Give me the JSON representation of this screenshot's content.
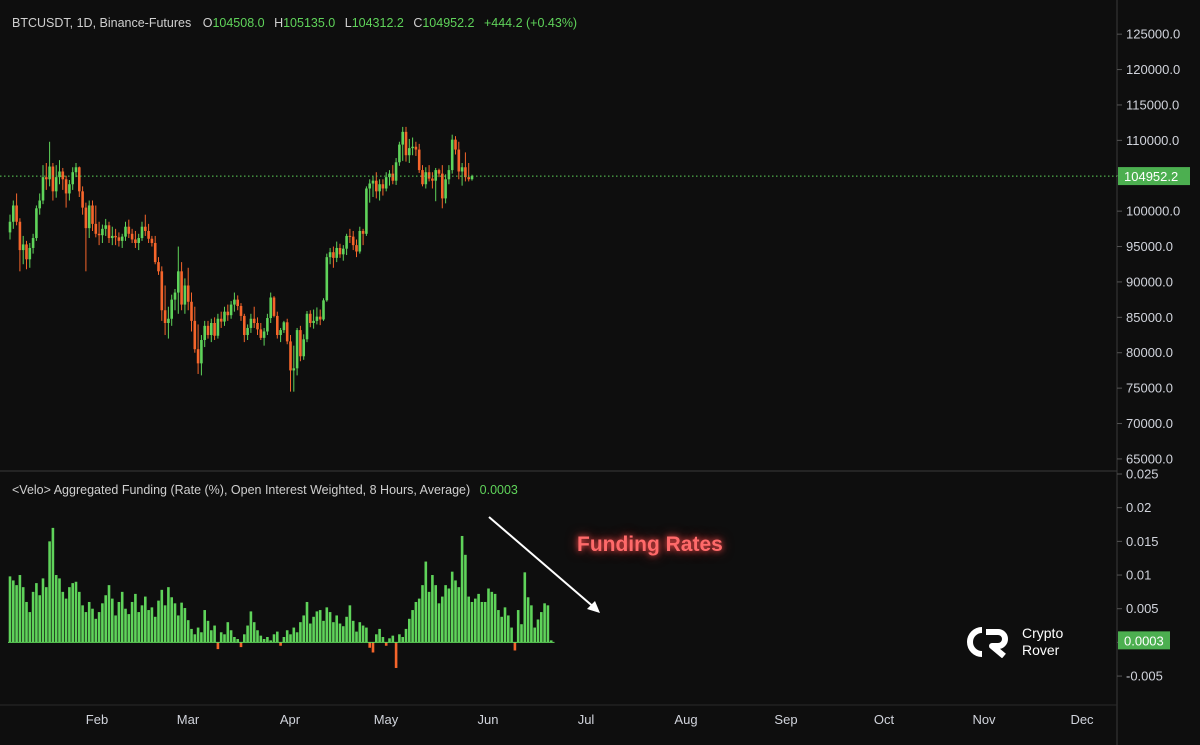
{
  "header": {
    "symbol": "BTCUSDT, 1D, Binance-Futures",
    "open_label": "O",
    "open": "104508.0",
    "high_label": "H",
    "high": "105135.0",
    "low_label": "L",
    "low": "104312.2",
    "close_label": "C",
    "close": "104952.2",
    "change": "+444.2 (+0.43%)"
  },
  "indicator": {
    "label": "<Velo> Aggregated Funding (Rate (%), Open Interest Weighted, 8 Hours, Average)",
    "value": "0.0003"
  },
  "annotation": "Funding Rates",
  "logo": {
    "line1": "Crypto",
    "line2": "Rover"
  },
  "colors": {
    "up": "#5fd35a",
    "down": "#f5652b",
    "background": "#0e0e0e",
    "last_price_tag": "#4caf50"
  },
  "chart_data": [
    {
      "type": "candlestick",
      "title": "BTCUSDT, 1D, Binance-Futures",
      "yaxis_ticks": [
        "125000.0",
        "120000.0",
        "115000.0",
        "110000.0",
        "105000.0",
        "100000.0",
        "95000.0",
        "90000.0",
        "85000.0",
        "80000.0",
        "75000.0",
        "70000.0",
        "65000.0"
      ],
      "ylim": [
        64000,
        127000
      ],
      "xaxis_ticks": [
        "Feb",
        "Mar",
        "Apr",
        "May",
        "Jun",
        "Jul",
        "Aug",
        "Sep",
        "Oct",
        "Nov",
        "Dec"
      ],
      "x_start": "2025-01-01",
      "last_price": 104952.2,
      "last_price_label": "104952.2",
      "ohlc": [
        [
          97000,
          99500,
          96000,
          98500
        ],
        [
          98500,
          101500,
          97500,
          100800
        ],
        [
          100800,
          102500,
          98000,
          98500
        ],
        [
          98500,
          99000,
          91500,
          94500
        ],
        [
          94500,
          96500,
          92500,
          95300
        ],
        [
          95300,
          95800,
          91800,
          93200
        ],
        [
          93200,
          95500,
          92000,
          94800
        ],
        [
          94800,
          96800,
          94000,
          96200
        ],
        [
          96200,
          100800,
          95800,
          100400
        ],
        [
          100400,
          102500,
          99500,
          101500
        ],
        [
          101500,
          106500,
          101000,
          104800
        ],
        [
          104800,
          106800,
          103000,
          104500
        ],
        [
          104500,
          109800,
          103500,
          106300
        ],
        [
          106300,
          106800,
          101500,
          102800
        ],
        [
          102800,
          106500,
          101900,
          104800
        ],
        [
          104800,
          107200,
          103800,
          105600
        ],
        [
          105600,
          106100,
          103000,
          104500
        ],
        [
          104500,
          105000,
          100500,
          102500
        ],
        [
          102500,
          104400,
          101500,
          103800
        ],
        [
          103800,
          106200,
          103000,
          105500
        ],
        [
          105500,
          106800,
          104800,
          106200
        ],
        [
          106200,
          106300,
          102000,
          102800
        ],
        [
          102800,
          103500,
          99500,
          100500
        ],
        [
          100500,
          101200,
          91500,
          97600
        ],
        [
          97600,
          101500,
          96200,
          100800
        ],
        [
          100800,
          101500,
          97200,
          98200
        ],
        [
          98200,
          100800,
          96300,
          96800
        ],
        [
          96800,
          98500,
          95200,
          96600
        ],
        [
          96600,
          98100,
          95500,
          97500
        ],
        [
          97500,
          98900,
          96500,
          98000
        ],
        [
          98000,
          98500,
          95500,
          96200
        ],
        [
          96200,
          97800,
          95200,
          96500
        ],
        [
          96500,
          97500,
          95200,
          96300
        ],
        [
          96300,
          97000,
          95000,
          95800
        ],
        [
          95800,
          96800,
          94800,
          96400
        ],
        [
          96400,
          98500,
          95800,
          97800
        ],
        [
          97800,
          98800,
          96200,
          96800
        ],
        [
          96800,
          97500,
          95500,
          96000
        ],
        [
          96000,
          97200,
          94800,
          95500
        ],
        [
          95500,
          96800,
          94500,
          96200
        ],
        [
          96200,
          98500,
          95800,
          97800
        ],
        [
          97800,
          99500,
          96500,
          97200
        ],
        [
          97200,
          98200,
          95500,
          96100
        ],
        [
          96100,
          96500,
          95000,
          95500
        ],
        [
          95500,
          96500,
          92500,
          92800
        ],
        [
          92800,
          93500,
          91000,
          91500
        ],
        [
          91500,
          92200,
          84500,
          86000
        ],
        [
          86000,
          89500,
          82500,
          84200
        ],
        [
          84200,
          86500,
          82000,
          84800
        ],
        [
          84800,
          88200,
          83800,
          87500
        ],
        [
          87500,
          89000,
          86000,
          88500
        ],
        [
          88500,
          95000,
          85500,
          91500
        ],
        [
          91500,
          92800,
          86000,
          86800
        ],
        [
          86800,
          90500,
          85500,
          89500
        ],
        [
          89500,
          92000,
          86000,
          87200
        ],
        [
          87200,
          88500,
          83000,
          84500
        ],
        [
          84500,
          86500,
          80000,
          80500
        ],
        [
          80500,
          84000,
          77000,
          78500
        ],
        [
          78500,
          82500,
          76800,
          81800
        ],
        [
          81800,
          84500,
          80800,
          83800
        ],
        [
          83800,
          84500,
          82000,
          82500
        ],
        [
          82500,
          84800,
          81500,
          84200
        ],
        [
          84200,
          85000,
          81800,
          82400
        ],
        [
          82400,
          85500,
          82000,
          84800
        ],
        [
          84800,
          85800,
          83500,
          84400
        ],
        [
          84400,
          86500,
          83800,
          85800
        ],
        [
          85800,
          86800,
          84500,
          85300
        ],
        [
          85300,
          87300,
          84800,
          86800
        ],
        [
          86800,
          88500,
          85800,
          87500
        ],
        [
          87500,
          88100,
          86000,
          86600
        ],
        [
          86600,
          87000,
          84500,
          85200
        ],
        [
          85200,
          85500,
          81500,
          82500
        ],
        [
          82500,
          84000,
          81800,
          83500
        ],
        [
          83500,
          85500,
          82800,
          84800
        ],
        [
          84800,
          86500,
          83500,
          84200
        ],
        [
          84200,
          85000,
          82500,
          83300
        ],
        [
          83300,
          84200,
          81800,
          82100
        ],
        [
          82100,
          83500,
          81000,
          83000
        ],
        [
          83000,
          85500,
          82500,
          84900
        ],
        [
          84900,
          88500,
          84200,
          87800
        ],
        [
          87800,
          88000,
          85000,
          85200
        ],
        [
          85200,
          85800,
          82000,
          82500
        ],
        [
          82500,
          83500,
          81500,
          83200
        ],
        [
          83200,
          84500,
          82800,
          84300
        ],
        [
          84300,
          84800,
          81200,
          81600
        ],
        [
          81600,
          82500,
          74500,
          77500
        ],
        [
          77500,
          81000,
          74500,
          77800
        ],
        [
          77800,
          83500,
          76800,
          83200
        ],
        [
          83200,
          83800,
          78800,
          79500
        ],
        [
          79500,
          82600,
          79000,
          81900
        ],
        [
          81900,
          85900,
          81500,
          85500
        ],
        [
          85500,
          86000,
          83600,
          84200
        ],
        [
          84200,
          86100,
          83400,
          84500
        ],
        [
          84500,
          86400,
          84000,
          85100
        ],
        [
          85100,
          86100,
          83900,
          84700
        ],
        [
          84700,
          87700,
          84500,
          87400
        ],
        [
          87400,
          94000,
          87200,
          93500
        ],
        [
          93500,
          94800,
          92500,
          94200
        ],
        [
          94200,
          95000,
          92000,
          93400
        ],
        [
          93400,
          95700,
          92800,
          94800
        ],
        [
          94800,
          95400,
          93400,
          93900
        ],
        [
          93900,
          95200,
          93000,
          94700
        ],
        [
          94700,
          96800,
          93800,
          96500
        ],
        [
          96500,
          97500,
          95500,
          96400
        ],
        [
          96400,
          97200,
          94500,
          95200
        ],
        [
          95200,
          96000,
          93500,
          94300
        ],
        [
          94300,
          97800,
          94000,
          97200
        ],
        [
          97200,
          97500,
          95200,
          96800
        ],
        [
          96800,
          103500,
          96500,
          103200
        ],
        [
          103200,
          104500,
          101200,
          103900
        ],
        [
          103900,
          105000,
          102000,
          104300
        ],
        [
          104300,
          105500,
          101800,
          102800
        ],
        [
          102800,
          104500,
          101500,
          103800
        ],
        [
          103800,
          104500,
          102200,
          103200
        ],
        [
          103200,
          105500,
          102800,
          104800
        ],
        [
          104800,
          105800,
          103600,
          105300
        ],
        [
          105300,
          106500,
          103800,
          104300
        ],
        [
          104300,
          107500,
          103700,
          106900
        ],
        [
          106900,
          109800,
          106400,
          109400
        ],
        [
          109400,
          111900,
          107100,
          111200
        ],
        [
          111200,
          111900,
          107000,
          107900
        ],
        [
          107900,
          110200,
          106800,
          108900
        ],
        [
          108900,
          110400,
          107900,
          109100
        ],
        [
          109100,
          109800,
          107800,
          108700
        ],
        [
          108700,
          109500,
          105400,
          105800
        ],
        [
          105800,
          106500,
          103500,
          103800
        ],
        [
          103800,
          106200,
          103200,
          105500
        ],
        [
          105500,
          106500,
          104200,
          104600
        ],
        [
          104600,
          105500,
          103200,
          104300
        ],
        [
          104300,
          106100,
          101400,
          105800
        ],
        [
          105800,
          106000,
          104800,
          105300
        ],
        [
          105300,
          106500,
          100400,
          101800
        ],
        [
          101800,
          105200,
          101100,
          104500
        ],
        [
          104500,
          106500,
          103800,
          105800
        ],
        [
          105800,
          110800,
          105300,
          110100
        ],
        [
          110100,
          110600,
          108000,
          108700
        ],
        [
          108700,
          109800,
          104500,
          105600
        ],
        [
          105600,
          106800,
          103600,
          106200
        ],
        [
          106200,
          108300,
          104200,
          104800
        ],
        [
          104800,
          106800,
          104200,
          104508
        ],
        [
          104508,
          105135,
          104312.2,
          104952.2
        ]
      ]
    },
    {
      "type": "bar",
      "title": "<Velo> Aggregated Funding (Rate (%), Open Interest Weighted, 8 Hours, Average)",
      "yaxis_ticks": [
        "0.025",
        "0.02",
        "0.015",
        "0.01",
        "0.005",
        "0",
        "-0.005"
      ],
      "ylim": [
        -0.009,
        0.025
      ],
      "last_value_label": "0.0003",
      "values": [
        0.0098,
        0.0092,
        0.0085,
        0.01,
        0.0082,
        0.006,
        0.0045,
        0.0075,
        0.0088,
        0.007,
        0.0095,
        0.0082,
        0.015,
        0.017,
        0.01,
        0.0095,
        0.0075,
        0.0065,
        0.0082,
        0.0088,
        0.009,
        0.0075,
        0.0055,
        0.0045,
        0.006,
        0.005,
        0.0035,
        0.0045,
        0.0058,
        0.007,
        0.0085,
        0.0065,
        0.004,
        0.006,
        0.0075,
        0.005,
        0.0042,
        0.006,
        0.0072,
        0.0045,
        0.0055,
        0.0068,
        0.0048,
        0.0052,
        0.0038,
        0.0062,
        0.0078,
        0.0055,
        0.0082,
        0.0067,
        0.0058,
        0.004,
        0.0059,
        0.0051,
        0.0033,
        0.002,
        0.0012,
        0.0022,
        0.0015,
        0.0048,
        0.0032,
        0.0018,
        0.0025,
        -0.001,
        0.0015,
        0.0012,
        0.003,
        0.0018,
        0.0008,
        0.0005,
        -0.0007,
        0.0012,
        0.0025,
        0.0046,
        0.003,
        0.0018,
        0.001,
        0.0005,
        0.0008,
        0.0003,
        0.0012,
        0.0016,
        -0.0005,
        0.0008,
        0.0018,
        0.0012,
        0.0022,
        0.0015,
        0.003,
        0.004,
        0.006,
        0.0028,
        0.0038,
        0.0046,
        0.0048,
        0.0032,
        0.0052,
        0.0045,
        0.003,
        0.004,
        0.0028,
        0.0024,
        0.0038,
        0.0055,
        0.0032,
        0.0016,
        0.003,
        0.0025,
        0.0022,
        -0.0008,
        -0.0015,
        0.0012,
        0.002,
        0.0008,
        -0.0005,
        0.0006,
        0.001,
        -0.0038,
        0.0012,
        0.0008,
        0.002,
        0.0035,
        0.0048,
        0.006,
        0.0065,
        0.0085,
        0.012,
        0.0075,
        0.01,
        0.0085,
        0.0058,
        0.0068,
        0.0085,
        0.008,
        0.0105,
        0.0092,
        0.0082,
        0.0158,
        0.013,
        0.0068,
        0.006,
        0.0065,
        0.0072,
        0.006,
        0.006,
        0.008,
        0.0075,
        0.0072,
        0.0048,
        0.0038,
        0.0052,
        0.004,
        0.0022,
        -0.0012,
        0.0048,
        0.0027,
        0.0104,
        0.0067,
        0.0055,
        0.0022,
        0.0034,
        0.0045,
        0.0058,
        0.0055,
        0.0003
      ]
    }
  ]
}
